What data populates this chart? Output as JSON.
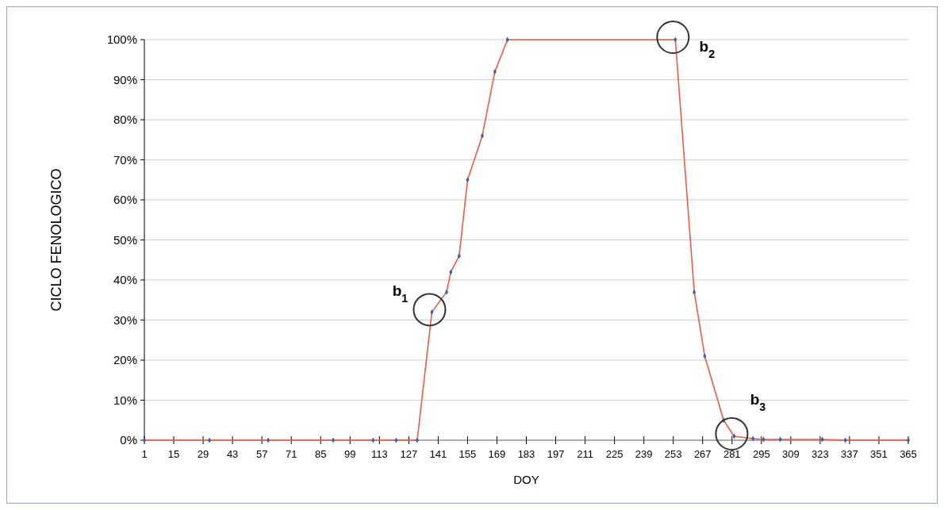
{
  "chart_data": {
    "type": "line",
    "xlabel": "DOY",
    "ylabel": "CICLO FENOLOGICO",
    "xlim": [
      1,
      365
    ],
    "xticks": [
      1,
      15,
      29,
      43,
      57,
      71,
      85,
      99,
      113,
      127,
      141,
      155,
      169,
      183,
      197,
      211,
      225,
      239,
      253,
      267,
      281,
      295,
      309,
      323,
      337,
      351,
      365
    ],
    "ylim": [
      0,
      100
    ],
    "yticks": [
      {
        "value": 0,
        "label": "0%"
      },
      {
        "value": 10,
        "label": "10%"
      },
      {
        "value": 20,
        "label": "20%"
      },
      {
        "value": 30,
        "label": "30%"
      },
      {
        "value": 40,
        "label": "40%"
      },
      {
        "value": 50,
        "label": "50%"
      },
      {
        "value": 60,
        "label": "60%"
      },
      {
        "value": 70,
        "label": "70%"
      },
      {
        "value": 80,
        "label": "80%"
      },
      {
        "value": 90,
        "label": "90%"
      },
      {
        "value": 100,
        "label": "100%"
      }
    ],
    "grid": "y",
    "marker": "diamond",
    "line_style": "solid",
    "series": [
      {
        "color": "#f05a46",
        "x": [
          1,
          32,
          60,
          91,
          110,
          121,
          131,
          138,
          145,
          147,
          151,
          155,
          162,
          168,
          174,
          254,
          263,
          268,
          277,
          282,
          291,
          296,
          304,
          324,
          335,
          365
        ],
        "values": [
          0,
          0,
          0,
          0,
          0,
          0,
          0,
          32,
          37,
          42,
          46,
          65,
          76,
          92,
          100,
          100,
          37,
          21,
          5,
          1,
          0.4,
          0.2,
          0.2,
          0.2,
          0,
          0
        ]
      }
    ],
    "annotations": [
      {
        "text": "b$_{1}$",
        "x": 138,
        "y": 32
      },
      {
        "text": "b$_{2}$",
        "x": 254,
        "y": 100
      },
      {
        "text": "b$_{3}$",
        "x": 282,
        "y": 1
      }
    ]
  }
}
